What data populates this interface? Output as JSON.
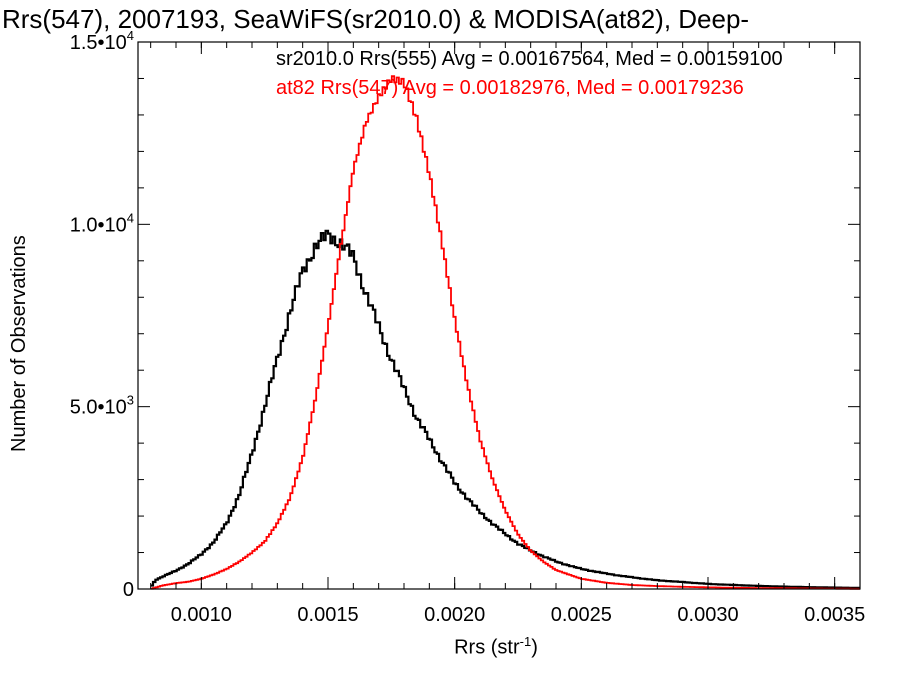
{
  "chart_data": {
    "type": "line",
    "title": "Rrs(547), 2007193, SeaWiFS(sr2010.0) & MODISA(at82), Deep-",
    "xlabel": "Rrs (str",
    "xlabel_sup": "-1",
    "xlabel_suffix": ")",
    "ylabel": "Number of Observations",
    "xlim": [
      0.00075,
      0.0036
    ],
    "ylim": [
      0,
      15000
    ],
    "x_ticks": [
      "0.0010",
      "0.0015",
      "0.0020",
      "0.0025",
      "0.0030",
      "0.0035"
    ],
    "x_tick_values": [
      0.001,
      0.0015,
      0.002,
      0.0025,
      0.003,
      0.0035
    ],
    "y_ticks": [
      {
        "value": 0,
        "mantissa": "0",
        "exp": ""
      },
      {
        "value": 5000,
        "mantissa": "5.0•10",
        "exp": "3"
      },
      {
        "value": 10000,
        "mantissa": "1.0•10",
        "exp": "4"
      },
      {
        "value": 15000,
        "mantissa": "1.5•10",
        "exp": "4"
      }
    ],
    "annotations": [
      "sr2010.0 Rrs(555) Avg = 0.00167564, Med = 0.00159100",
      "at82 Rrs(547) Avg = 0.00182976, Med = 0.00179236"
    ],
    "series": [
      {
        "name": "sr2010.0 Rrs(555)",
        "color": "#000000",
        "x": [
          0.0008,
          0.00082,
          0.00085,
          0.0009,
          0.00095,
          0.001,
          0.00105,
          0.0011,
          0.00115,
          0.0012,
          0.00125,
          0.0013,
          0.00135,
          0.0014,
          0.00145,
          0.0015,
          0.00155,
          0.0016,
          0.00165,
          0.0017,
          0.00175,
          0.0018,
          0.00185,
          0.0019,
          0.00195,
          0.002,
          0.00205,
          0.0021,
          0.00215,
          0.0022,
          0.00225,
          0.0023,
          0.0024,
          0.0025,
          0.0026,
          0.0027,
          0.0028,
          0.0029,
          0.003,
          0.0031,
          0.0032,
          0.0033,
          0.0034,
          0.0035,
          0.0036
        ],
        "y": [
          50,
          250,
          350,
          500,
          700,
          950,
          1300,
          1800,
          2600,
          3700,
          5000,
          6300,
          7600,
          8700,
          9400,
          9700,
          9500,
          9100,
          8100,
          7200,
          6300,
          5500,
          4700,
          4100,
          3500,
          2900,
          2500,
          2100,
          1800,
          1500,
          1250,
          1050,
          750,
          550,
          420,
          320,
          240,
          190,
          140,
          110,
          85,
          65,
          50,
          40,
          30
        ]
      },
      {
        "name": "at82 Rrs(547)",
        "color": "#ff0000",
        "x": [
          0.0008,
          0.00085,
          0.0009,
          0.00095,
          0.001,
          0.00105,
          0.0011,
          0.00115,
          0.0012,
          0.00125,
          0.0013,
          0.00135,
          0.0014,
          0.00145,
          0.0015,
          0.00155,
          0.0016,
          0.00165,
          0.0017,
          0.00175,
          0.0018,
          0.00185,
          0.0019,
          0.00195,
          0.002,
          0.00205,
          0.0021,
          0.00215,
          0.0022,
          0.00225,
          0.0023,
          0.00235,
          0.0024,
          0.0025,
          0.0026,
          0.0027,
          0.0028,
          0.0029,
          0.003,
          0.0031,
          0.0032,
          0.0033,
          0.0034,
          0.0035,
          0.0036
        ],
        "y": [
          0,
          100,
          160,
          200,
          280,
          400,
          550,
          750,
          1000,
          1300,
          1800,
          2500,
          3600,
          5200,
          7200,
          9400,
          11500,
          12800,
          13500,
          14000,
          13900,
          12900,
          11400,
          9500,
          7400,
          5600,
          4100,
          3000,
          2150,
          1500,
          1050,
          750,
          520,
          280,
          170,
          110,
          80,
          60,
          45,
          35,
          25,
          20,
          15,
          10,
          5
        ]
      }
    ]
  }
}
